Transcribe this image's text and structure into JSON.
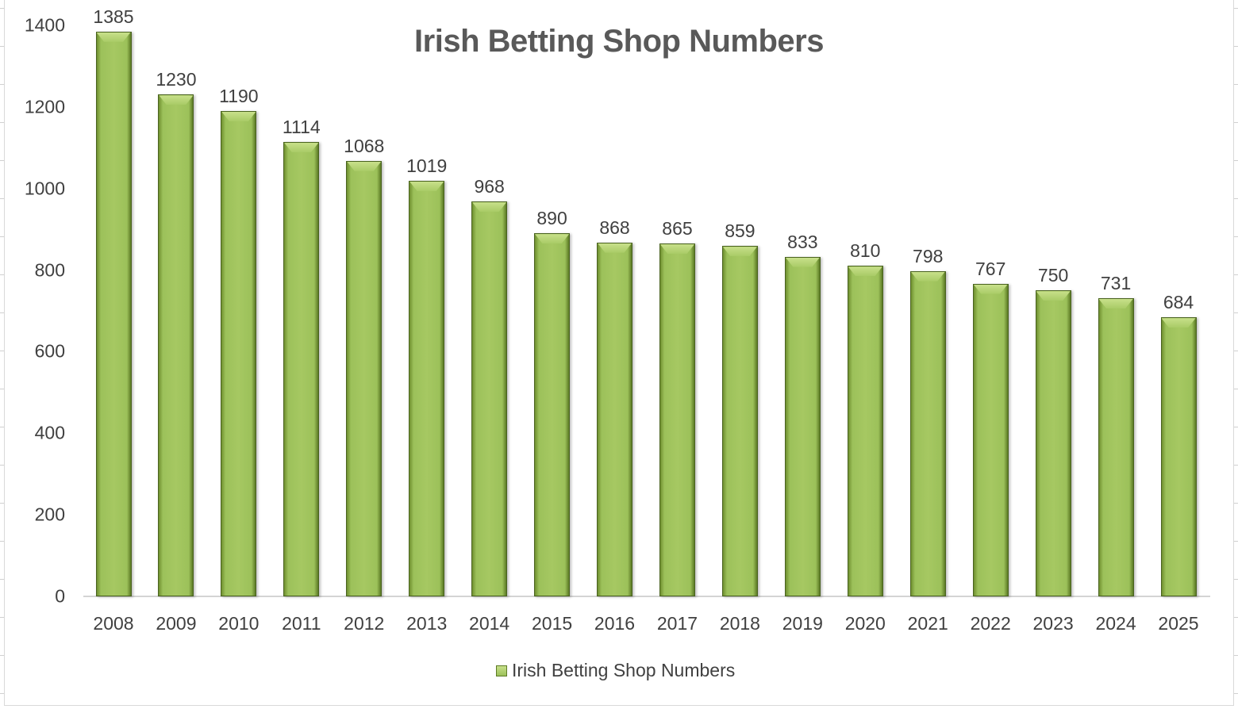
{
  "chart_data": {
    "type": "bar",
    "title": "Irish Betting Shop Numbers",
    "xlabel": "",
    "ylabel": "",
    "categories": [
      "2008",
      "2009",
      "2010",
      "2011",
      "2012",
      "2013",
      "2014",
      "2015",
      "2016",
      "2017",
      "2018",
      "2019",
      "2020",
      "2021",
      "2022",
      "2023",
      "2024",
      "2025"
    ],
    "series": [
      {
        "name": "Irish Betting Shop Numbers",
        "values": [
          1385,
          1230,
          1190,
          1114,
          1068,
          1019,
          968,
          890,
          868,
          865,
          859,
          833,
          810,
          798,
          767,
          750,
          731,
          684
        ]
      }
    ],
    "ylim": [
      0,
      1400
    ],
    "yticks": [
      "0",
      "200",
      "400",
      "600",
      "800",
      "1000",
      "1200",
      "1400"
    ],
    "grid": false,
    "legend_position": "bottom",
    "data_labels": true,
    "bar_color": "#9BBB59"
  },
  "chart": {
    "title": "Irish Betting Shop Numbers",
    "legend_label": "Irish Betting Shop Numbers"
  }
}
